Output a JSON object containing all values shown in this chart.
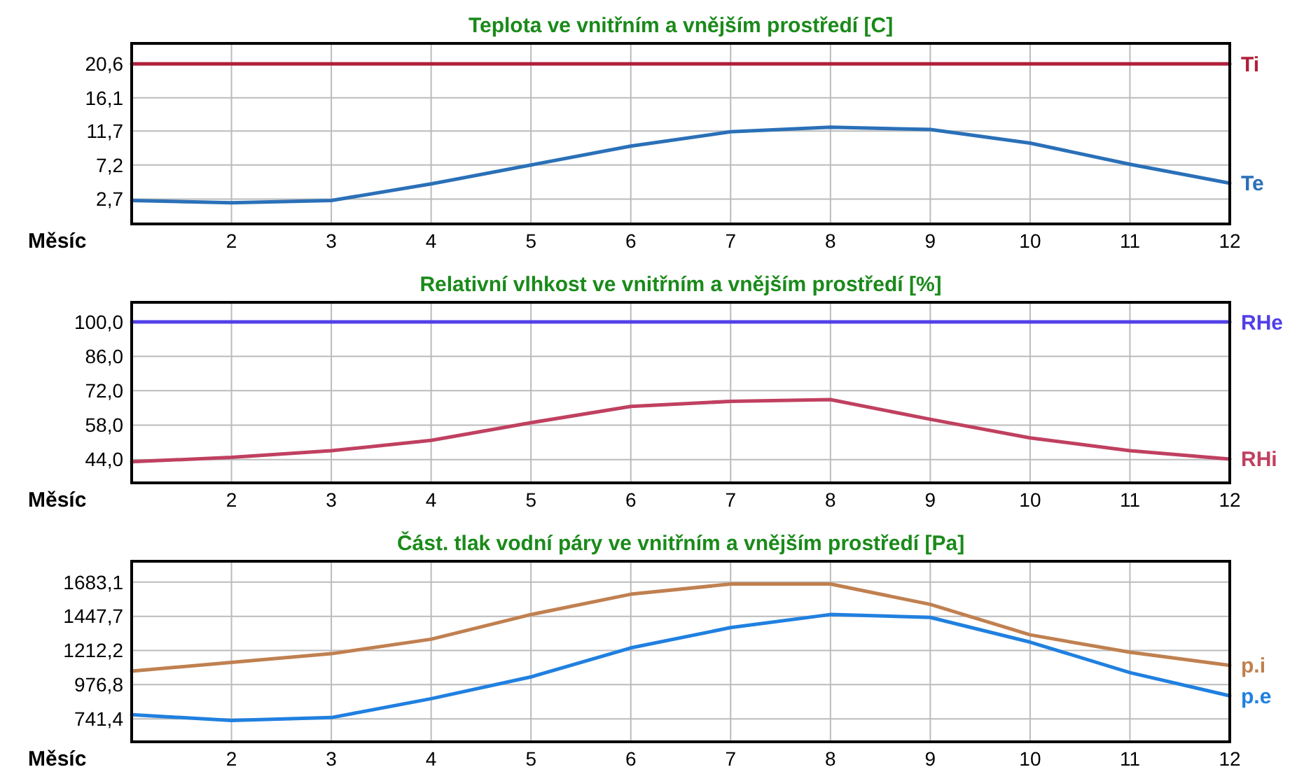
{
  "chart_data": [
    {
      "type": "line",
      "title": "Teplota ve vnitřním a vnějším prostředí [C]",
      "xlabel": "Měsíc",
      "x": [
        1,
        2,
        3,
        4,
        5,
        6,
        7,
        8,
        9,
        10,
        11,
        12
      ],
      "xlim": [
        1,
        12
      ],
      "xticks": [
        2,
        3,
        4,
        5,
        6,
        7,
        8,
        9,
        10,
        11,
        12
      ],
      "ylim": [
        -0.6,
        23.3
      ],
      "yticks": [
        {
          "value": 2.7,
          "label": "2,7"
        },
        {
          "value": 7.2,
          "label": "7,2"
        },
        {
          "value": 11.7,
          "label": "11,7"
        },
        {
          "value": 16.1,
          "label": "16,1"
        },
        {
          "value": 20.6,
          "label": "20,6"
        }
      ],
      "grid": true,
      "marker": "none",
      "series": [
        {
          "name": "Ti",
          "color": "#b0203a",
          "values": [
            20.6,
            20.6,
            20.6,
            20.6,
            20.6,
            20.6,
            20.6,
            20.6,
            20.6,
            20.6,
            20.6,
            20.6
          ]
        },
        {
          "name": "Te",
          "color": "#2a70b8",
          "values": [
            2.5,
            2.2,
            2.5,
            4.7,
            7.2,
            9.7,
            11.6,
            12.2,
            11.9,
            10.1,
            7.3,
            4.8
          ]
        }
      ]
    },
    {
      "type": "line",
      "title": "Relativní vlhkost ve vnitřním a vnějším prostředí [%]",
      "xlabel": "Měsíc",
      "x": [
        1,
        2,
        3,
        4,
        5,
        6,
        7,
        8,
        9,
        10,
        11,
        12
      ],
      "xlim": [
        1,
        12
      ],
      "xticks": [
        2,
        3,
        4,
        5,
        6,
        7,
        8,
        9,
        10,
        11,
        12
      ],
      "ylim": [
        34.5,
        108
      ],
      "yticks": [
        {
          "value": 44,
          "label": "44,0"
        },
        {
          "value": 58,
          "label": "58,0"
        },
        {
          "value": 72,
          "label": "72,0"
        },
        {
          "value": 86,
          "label": "86,0"
        },
        {
          "value": 100,
          "label": "100,0"
        }
      ],
      "grid": true,
      "marker": "none",
      "series": [
        {
          "name": "RHe",
          "color": "#5040e8",
          "values": [
            100,
            100,
            100,
            100,
            100,
            100,
            100,
            100,
            100,
            100,
            100,
            100
          ]
        },
        {
          "name": "RHi",
          "color": "#c04060",
          "values": [
            43.1,
            44.9,
            47.6,
            51.8,
            59.0,
            65.6,
            67.7,
            68.4,
            60.4,
            52.8,
            47.6,
            44.2
          ]
        }
      ]
    },
    {
      "type": "line",
      "title": "Část. tlak vodní páry ve vnitřním a vnějším prostředí [Pa]",
      "xlabel": "Měsíc",
      "x": [
        1,
        2,
        3,
        4,
        5,
        6,
        7,
        8,
        9,
        10,
        11,
        12
      ],
      "xlim": [
        1,
        12
      ],
      "xticks": [
        2,
        3,
        4,
        5,
        6,
        7,
        8,
        9,
        10,
        11,
        12
      ],
      "ylim": [
        583,
        1827
      ],
      "yticks": [
        {
          "value": 741.4,
          "label": "741,4"
        },
        {
          "value": 976.8,
          "label": "976,8"
        },
        {
          "value": 1212.2,
          "label": "1212,2"
        },
        {
          "value": 1447.7,
          "label": "1447,7"
        },
        {
          "value": 1683.1,
          "label": "1683,1"
        }
      ],
      "grid": true,
      "marker": "none",
      "series": [
        {
          "name": "p.i",
          "color": "#c08050",
          "values": [
            1070,
            1130,
            1190,
            1290,
            1460,
            1600,
            1670,
            1670,
            1530,
            1320,
            1200,
            1110
          ]
        },
        {
          "name": "p.e",
          "color": "#2080e0",
          "values": [
            770,
            730,
            750,
            880,
            1030,
            1230,
            1370,
            1460,
            1440,
            1270,
            1060,
            900
          ]
        }
      ]
    }
  ]
}
